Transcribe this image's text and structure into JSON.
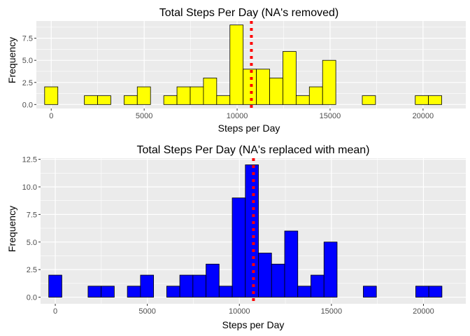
{
  "chart_data": [
    {
      "type": "bar",
      "subtype": "histogram",
      "title": "Total Steps Per Day (NA's removed)",
      "xlabel": "Steps per Day",
      "ylabel": "Frequency",
      "xlim": [
        -800,
        22300
      ],
      "ylim": [
        -0.45,
        9.45
      ],
      "xticks": [
        0,
        5000,
        10000,
        15000,
        20000
      ],
      "yticks": [
        0,
        2.5,
        5,
        7.5
      ],
      "ytick_labels": [
        "0.0",
        "2.5",
        "5.0",
        "7.5"
      ],
      "bin_width": 712,
      "bin_centers": [
        0,
        712,
        1424,
        2136,
        2848,
        3560,
        4272,
        4984,
        5696,
        6408,
        7120,
        7832,
        8544,
        9256,
        9968,
        10680,
        11392,
        12104,
        12816,
        13528,
        14240,
        14952,
        15664,
        16376,
        17088,
        17800,
        18512,
        19224,
        19936,
        20648,
        21360
      ],
      "counts": [
        2,
        0,
        0,
        1,
        1,
        0,
        1,
        2,
        0,
        1,
        2,
        2,
        3,
        1,
        9,
        4,
        4,
        3,
        6,
        1,
        2,
        5,
        0,
        0,
        1,
        0,
        0,
        0,
        1,
        1,
        0
      ],
      "bar_color": "#ffff00",
      "mean_line": 10766,
      "mean_line_color": "#ff0000",
      "grid": true,
      "background": "#ebebeb"
    },
    {
      "type": "bar",
      "subtype": "histogram",
      "title": "Total Steps Per Day (NA's replaced with mean)",
      "xlabel": "Steps per Day",
      "ylabel": "Frequency",
      "xlim": [
        -800,
        22300
      ],
      "ylim": [
        -0.6,
        12.6
      ],
      "xticks": [
        0,
        5000,
        10000,
        15000,
        20000
      ],
      "yticks": [
        0,
        2.5,
        5,
        7.5,
        10,
        12.5
      ],
      "ytick_labels": [
        "0.0",
        "2.5",
        "5.0",
        "7.5",
        "10.0",
        "12.5"
      ],
      "bin_width": 712,
      "bin_centers": [
        0,
        712,
        1424,
        2136,
        2848,
        3560,
        4272,
        4984,
        5696,
        6408,
        7120,
        7832,
        8544,
        9256,
        9968,
        10680,
        11392,
        12104,
        12816,
        13528,
        14240,
        14952,
        15664,
        16376,
        17088,
        17800,
        18512,
        19224,
        19936,
        20648,
        21360
      ],
      "counts": [
        2,
        0,
        0,
        1,
        1,
        0,
        1,
        2,
        0,
        1,
        2,
        2,
        3,
        1,
        9,
        12,
        4,
        3,
        6,
        1,
        2,
        5,
        0,
        0,
        1,
        0,
        0,
        0,
        1,
        1,
        0
      ],
      "bar_color": "#0000ff",
      "mean_line": 10766,
      "mean_line_color": "#ff0000",
      "grid": true,
      "background": "#ebebeb"
    }
  ]
}
